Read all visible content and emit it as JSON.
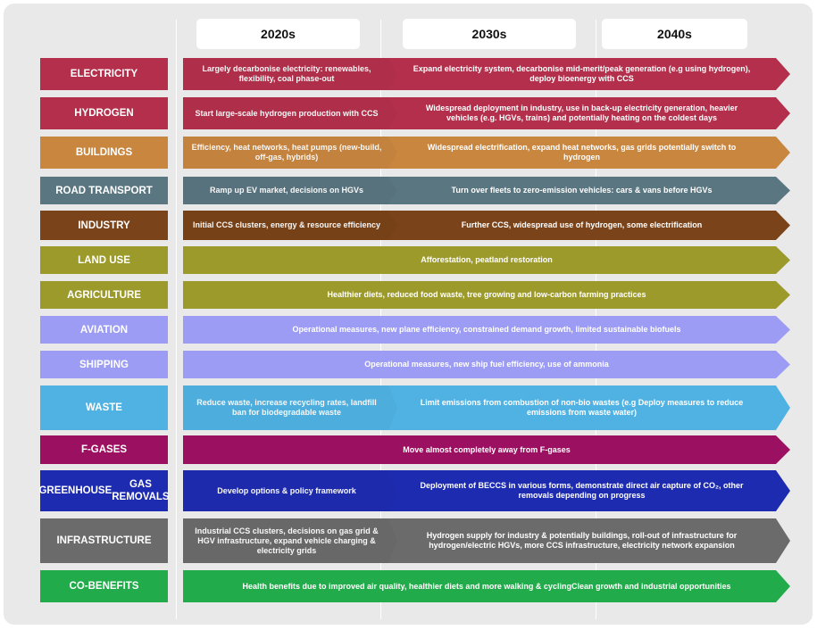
{
  "headers": [
    "2020s",
    "2030s",
    "2040s"
  ],
  "rows": [
    {
      "label": "ELECTRICITY",
      "color": "#b42f4b",
      "first": "Largely decarbonise electricity: renewables, flexibility, coal phase-out",
      "second": "Expand electricity system, decarbonise mid-merit/peak generation (e.g using hydrogen), deploy bioenergy with CCS"
    },
    {
      "label": "HYDROGEN",
      "color": "#b42f4b",
      "first": "Start large-scale hydrogen production with CCS",
      "second": "Widespread deployment in industry, use in back-up electricity generation, heavier vehicles (e.g. HGVs, trains) and potentially heating on the coldest days"
    },
    {
      "label": "BUILDINGS",
      "color": "#c9863f",
      "first": "Efficiency, heat networks, heat pumps (new-build, off-gas, hybrids)",
      "second": "Widespread electrification, expand heat networks, gas grids potentially switch to hydrogen"
    },
    {
      "label": "ROAD TRANSPORT",
      "color": "#5a7680",
      "first": "Ramp up EV market, decisions on HGVs",
      "second": "Turn over fleets to zero-emission vehicles:  cars & vans  before HGVs"
    },
    {
      "label": "INDUSTRY",
      "color": "#7b4319",
      "first": "Initial CCS clusters, energy & resource efficiency",
      "second": "Further CCS, widespread use of hydrogen, some electrification"
    },
    {
      "label": "LAND USE",
      "color": "#9c9a2b",
      "full": "Afforestation, peatland restoration"
    },
    {
      "label": "AGRICULTURE",
      "color": "#9c9a2b",
      "full": "Healthier diets, reduced food waste, tree growing and low-carbon farming practices"
    },
    {
      "label": "AVIATION",
      "color": "#9c9cf4",
      "full": "Operational measures, new plane efficiency, constrained demand growth, limited sustainable biofuels"
    },
    {
      "label": "SHIPPING",
      "color": "#9c9cf4",
      "full": "Operational measures, new ship fuel efficiency, use of ammonia"
    },
    {
      "label": "WASTE",
      "color": "#4fb2e3",
      "first": "Reduce waste, increase recycling rates, landfill ban for biodegradable waste",
      "second": "Limit emissions from combustion of non-bio wastes (e.g Deploy measures to reduce emissions from waste water)"
    },
    {
      "label": "F-GASES",
      "color": "#9b1060",
      "full": "Move almost completely away from F-gases"
    },
    {
      "label": "GREENHOUSE GAS REMOVALS",
      "color": "#1d2bb0",
      "first": "Develop options & policy framework",
      "second": "Deployment of BECCS in various forms, demonstrate direct air capture of CO₂, other removals depending on progress"
    },
    {
      "label": "INFRASTRUCTURE",
      "color": "#6b6b6b",
      "first": "Industrial CCS clusters, decisions on gas grid & HGV infrastructure, expand vehicle charging & electricity grids",
      "second": "Hydrogen supply for industry & potentially buildings, roll-out of infrastructure for hydrogen/electric HGVs, more CCS infrastructure, electricity network expansion"
    },
    {
      "label": "CO-BENEFITS",
      "color": "#22ab4a",
      "full": "Health benefits due to improved air quality, healthier diets and more walking & cycling\nClean growth and industrial opportunities"
    }
  ]
}
